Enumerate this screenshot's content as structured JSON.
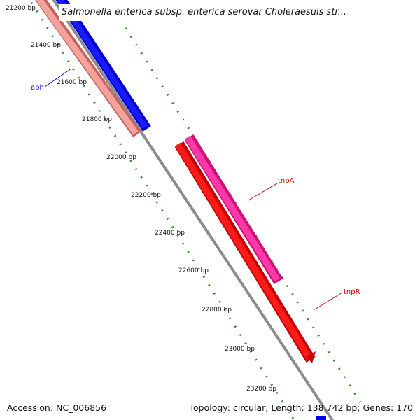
{
  "title": "Salmonella enterica subsp. enterica serovar Choleraesuis str...",
  "footer": {
    "accession": "Accession: NC_006856",
    "stats": "Topology: circular; Length: 138,742 bp; Genes: 170"
  },
  "ruler": {
    "labels": [
      "21200 bp",
      "21400 bp",
      "21600 bp",
      "21800 bp",
      "22000 bp",
      "22200 bp",
      "22400 bp",
      "22600 bp",
      "22800 bp",
      "23000 bp",
      "23200 bp"
    ]
  },
  "genes": [
    {
      "name": "aph",
      "color": "#0000cc"
    },
    {
      "name": "tnpA",
      "color": "#cc0000"
    },
    {
      "name": "tnpR",
      "color": "#cc0000"
    }
  ],
  "colors": {
    "backbone": "#8c8c8c",
    "tick": "#2e8b22",
    "blue_gene": "#0000ee",
    "salmon_gene": "#f0908a",
    "magenta_gene": "#ff2a9a",
    "red_gene": "#ee0000"
  }
}
